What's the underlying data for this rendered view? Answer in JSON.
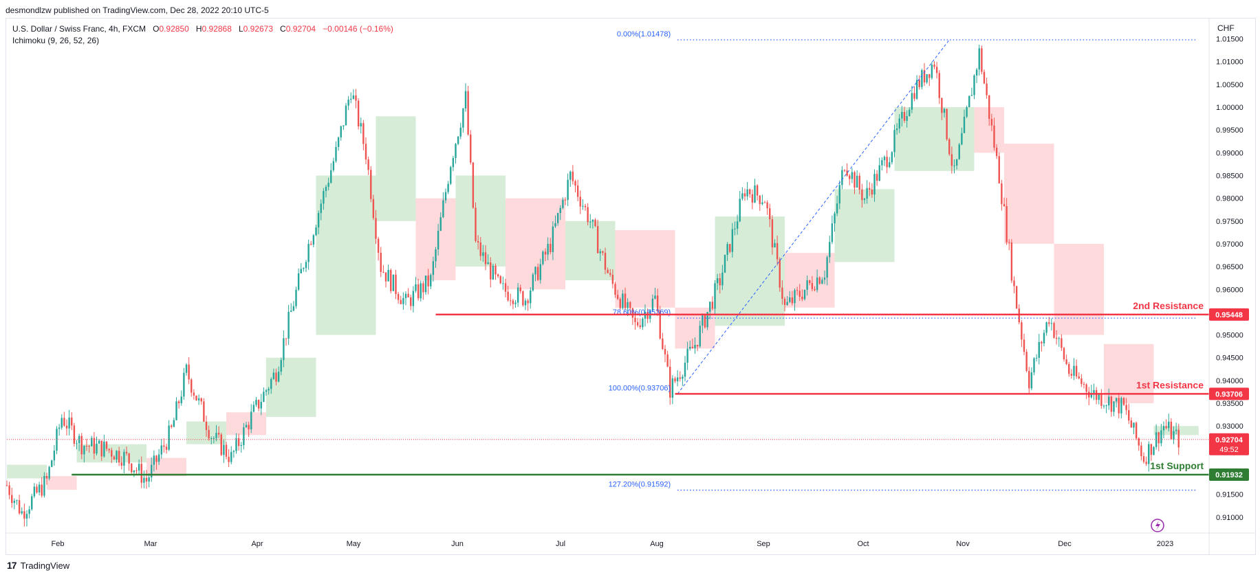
{
  "header": {
    "publisher": "desmondlzw published on TradingView.com, Dec 28, 2022 20:10 UTC-5",
    "symbol": "U.S. Dollar / Swiss Franc, 4h, FXCM",
    "o_label": "O",
    "o_value": "0.92850",
    "h_label": "H",
    "h_value": "0.92868",
    "l_label": "L",
    "l_value": "0.92673",
    "c_label": "C",
    "c_value": "0.92704",
    "change": "−0.00146 (−0.16%)",
    "indicator": "Ichimoku (9, 26, 52, 26)",
    "currency": "CHF"
  },
  "brand": {
    "logo": "17",
    "name": "TradingView"
  },
  "colors": {
    "up": "#26a69a",
    "down": "#ef5350",
    "resistance": "#f23645",
    "support": "#2e7d32",
    "fib": "#2962ff",
    "cloud_up": "#c8e6c9",
    "cloud_down": "#ffcdd2"
  },
  "chart_data": {
    "type": "candlestick",
    "title": "U.S. Dollar / Swiss Franc, 4h, FXCM",
    "ylim": [
      0.9065,
      1.0175
    ],
    "y_ticks": [
      "1.01500",
      "1.01000",
      "1.00500",
      "1.00000",
      "0.99500",
      "0.99000",
      "0.98500",
      "0.98000",
      "0.97500",
      "0.97000",
      "0.96500",
      "0.96000",
      "0.95500",
      "0.95000",
      "0.94500",
      "0.94000",
      "0.93500",
      "0.93000",
      "0.92500",
      "0.92000",
      "0.91500",
      "0.91000"
    ],
    "x_ticks": [
      "Feb",
      "Mar",
      "Apr",
      "May",
      "Jun",
      "Jul",
      "Aug",
      "Sep",
      "Oct",
      "Nov",
      "Dec",
      "2023"
    ],
    "price_path": [
      {
        "t": 0.0,
        "p": 0.917
      },
      {
        "t": 0.3,
        "p": 0.911
      },
      {
        "t": 0.8,
        "p": 0.918
      },
      {
        "t": 1.1,
        "p": 0.932
      },
      {
        "t": 1.5,
        "p": 0.926
      },
      {
        "t": 2.0,
        "p": 0.925
      },
      {
        "t": 2.4,
        "p": 0.923
      },
      {
        "t": 2.8,
        "p": 0.918
      },
      {
        "t": 3.3,
        "p": 0.929
      },
      {
        "t": 3.6,
        "p": 0.942
      },
      {
        "t": 4.1,
        "p": 0.928
      },
      {
        "t": 4.5,
        "p": 0.923
      },
      {
        "t": 4.9,
        "p": 0.932
      },
      {
        "t": 5.4,
        "p": 0.942
      },
      {
        "t": 6.0,
        "p": 0.968
      },
      {
        "t": 6.6,
        "p": 0.99
      },
      {
        "t": 6.9,
        "p": 1.004
      },
      {
        "t": 7.2,
        "p": 0.99
      },
      {
        "t": 7.5,
        "p": 0.965
      },
      {
        "t": 8.0,
        "p": 0.957
      },
      {
        "t": 8.5,
        "p": 0.962
      },
      {
        "t": 8.9,
        "p": 0.988
      },
      {
        "t": 9.2,
        "p": 1.002
      },
      {
        "t": 9.4,
        "p": 0.97
      },
      {
        "t": 9.9,
        "p": 0.96
      },
      {
        "t": 10.4,
        "p": 0.958
      },
      {
        "t": 10.9,
        "p": 0.97
      },
      {
        "t": 11.3,
        "p": 0.985
      },
      {
        "t": 11.7,
        "p": 0.975
      },
      {
        "t": 12.1,
        "p": 0.962
      },
      {
        "t": 12.6,
        "p": 0.952
      },
      {
        "t": 13.0,
        "p": 0.958
      },
      {
        "t": 13.3,
        "p": 0.938
      },
      {
        "t": 13.8,
        "p": 0.948
      },
      {
        "t": 14.3,
        "p": 0.962
      },
      {
        "t": 14.8,
        "p": 0.982
      },
      {
        "t": 15.2,
        "p": 0.98
      },
      {
        "t": 15.6,
        "p": 0.956
      },
      {
        "t": 16.0,
        "p": 0.96
      },
      {
        "t": 16.4,
        "p": 0.964
      },
      {
        "t": 16.8,
        "p": 0.988
      },
      {
        "t": 17.2,
        "p": 0.98
      },
      {
        "t": 17.7,
        "p": 0.99
      },
      {
        "t": 18.2,
        "p": 1.004
      },
      {
        "t": 18.6,
        "p": 1.01
      },
      {
        "t": 19.0,
        "p": 0.985
      },
      {
        "t": 19.5,
        "p": 1.012
      },
      {
        "t": 19.9,
        "p": 0.985
      },
      {
        "t": 20.2,
        "p": 0.96
      },
      {
        "t": 20.5,
        "p": 0.94
      },
      {
        "t": 20.9,
        "p": 0.954
      },
      {
        "t": 21.3,
        "p": 0.942
      },
      {
        "t": 21.8,
        "p": 0.937
      },
      {
        "t": 22.4,
        "p": 0.934
      },
      {
        "t": 22.8,
        "p": 0.923
      },
      {
        "t": 23.2,
        "p": 0.93
      },
      {
        "t": 23.5,
        "p": 0.927
      }
    ],
    "ichimoku": {
      "segments": [
        {
          "t0": 0.0,
          "t1": 0.8,
          "a": 0.9215,
          "b": 0.9185,
          "bullish": true
        },
        {
          "t0": 0.8,
          "t1": 1.4,
          "a": 0.919,
          "b": 0.916,
          "bullish": false
        },
        {
          "t0": 1.4,
          "t1": 2.8,
          "a": 0.926,
          "b": 0.922,
          "bullish": true
        },
        {
          "t0": 2.8,
          "t1": 3.6,
          "a": 0.923,
          "b": 0.919,
          "bullish": false
        },
        {
          "t0": 3.6,
          "t1": 4.4,
          "a": 0.931,
          "b": 0.926,
          "bullish": true
        },
        {
          "t0": 4.4,
          "t1": 5.2,
          "a": 0.933,
          "b": 0.928,
          "bullish": false
        },
        {
          "t0": 5.2,
          "t1": 6.2,
          "a": 0.945,
          "b": 0.932,
          "bullish": true
        },
        {
          "t0": 6.2,
          "t1": 7.4,
          "a": 0.985,
          "b": 0.95,
          "bullish": true
        },
        {
          "t0": 7.4,
          "t1": 8.2,
          "a": 0.998,
          "b": 0.975,
          "bullish": true
        },
        {
          "t0": 8.2,
          "t1": 9.0,
          "a": 0.98,
          "b": 0.962,
          "bullish": false
        },
        {
          "t0": 9.0,
          "t1": 10.0,
          "a": 0.985,
          "b": 0.965,
          "bullish": true
        },
        {
          "t0": 10.0,
          "t1": 11.2,
          "a": 0.98,
          "b": 0.96,
          "bullish": false
        },
        {
          "t0": 11.2,
          "t1": 12.2,
          "a": 0.975,
          "b": 0.962,
          "bullish": true
        },
        {
          "t0": 12.2,
          "t1": 13.4,
          "a": 0.973,
          "b": 0.956,
          "bullish": false
        },
        {
          "t0": 13.4,
          "t1": 14.2,
          "a": 0.956,
          "b": 0.947,
          "bullish": false
        },
        {
          "t0": 14.2,
          "t1": 15.6,
          "a": 0.976,
          "b": 0.952,
          "bullish": true
        },
        {
          "t0": 15.6,
          "t1": 16.6,
          "a": 0.968,
          "b": 0.956,
          "bullish": false
        },
        {
          "t0": 16.6,
          "t1": 17.8,
          "a": 0.982,
          "b": 0.966,
          "bullish": true
        },
        {
          "t0": 17.8,
          "t1": 19.4,
          "a": 1.0,
          "b": 0.986,
          "bullish": true
        },
        {
          "t0": 19.4,
          "t1": 20.0,
          "a": 1.0,
          "b": 0.99,
          "bullish": false
        },
        {
          "t0": 20.0,
          "t1": 21.0,
          "a": 0.992,
          "b": 0.97,
          "bullish": false
        },
        {
          "t0": 21.0,
          "t1": 22.0,
          "a": 0.97,
          "b": 0.95,
          "bullish": false
        },
        {
          "t0": 22.0,
          "t1": 23.0,
          "a": 0.948,
          "b": 0.935,
          "bullish": false
        },
        {
          "t0": 23.0,
          "t1": 23.9,
          "a": 0.93,
          "b": 0.928,
          "bullish": true
        }
      ]
    },
    "levels": [
      {
        "name": "2nd Resistance",
        "value": 0.95448,
        "price_label": "0.95448",
        "color": "#f23645",
        "start_t": 8.6
      },
      {
        "name": "1st Resistance",
        "value": 0.93706,
        "price_label": "0.93706",
        "color": "#f23645",
        "start_t": 13.4
      },
      {
        "name": "1st Support",
        "value": 0.91932,
        "price_label": "0.91932",
        "color": "#2e7d32",
        "start_t": 1.3
      }
    ],
    "fibonacci": {
      "start": {
        "t": 13.45,
        "p": 0.93706
      },
      "end": {
        "t": 18.9,
        "p": 1.01478
      },
      "levels": [
        {
          "label": "0.00%(1.01478)",
          "value": 1.01478
        },
        {
          "label": "78.60%(0.95369)",
          "value": 0.95369
        },
        {
          "label": "100.00%(0.93706)",
          "value": 0.93706
        },
        {
          "label": "127.20%(0.91592)",
          "value": 0.91592
        }
      ]
    },
    "current": {
      "value": 0.92704,
      "price_label": "0.92704",
      "countdown": "49:52"
    }
  }
}
